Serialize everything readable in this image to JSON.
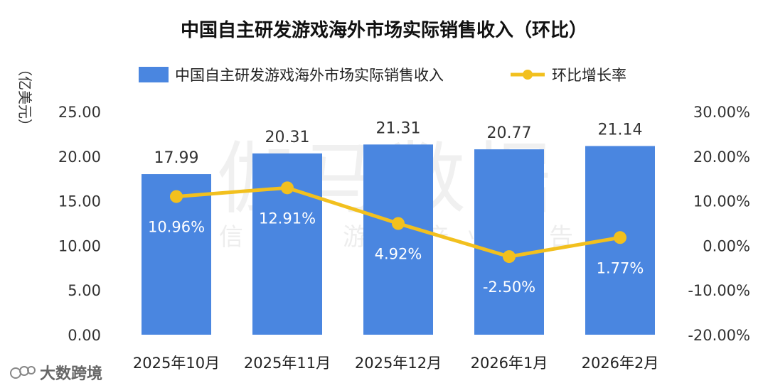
{
  "colors": {
    "bar": "#4A86E0",
    "line": "#F2C01E",
    "text": "#222222"
  },
  "watermark": {
    "main": "伽马数据",
    "sub": "微信号：游戏产业报告"
  },
  "branding": {
    "name": "大数跨境",
    "icon": "logo-icon"
  },
  "chart_data": {
    "type": "bar",
    "title": "中国自主研发游戏海外市场实际销售收入（环比）",
    "y_unit_label": "（亿美元）",
    "categories": [
      "2025年10月",
      "2025年11月",
      "2025年12月",
      "2026年1月",
      "2026年2月"
    ],
    "ylim": [
      0,
      25
    ],
    "y2lim": [
      -20,
      30
    ],
    "y_ticks": [
      "0.00",
      "5.00",
      "10.00",
      "15.00",
      "20.00",
      "25.00"
    ],
    "y2_ticks": [
      "-20.00%",
      "-10.00%",
      "0.00%",
      "10.00%",
      "20.00%",
      "30.00%"
    ],
    "legend_position": "top",
    "grid": false,
    "series": [
      {
        "name": "中国自主研发游戏海外市场实际销售收入",
        "type": "bar",
        "axis": "left",
        "values": [
          17.99,
          20.31,
          21.31,
          20.77,
          21.14
        ],
        "labels": [
          "17.99",
          "20.31",
          "21.31",
          "20.77",
          "21.14"
        ]
      },
      {
        "name": "环比增长率",
        "type": "line",
        "axis": "right",
        "values": [
          10.96,
          12.91,
          4.92,
          -2.5,
          1.77
        ],
        "labels": [
          "10.96%",
          "12.91%",
          "4.92%",
          "-2.50%",
          "1.77%"
        ]
      }
    ]
  }
}
